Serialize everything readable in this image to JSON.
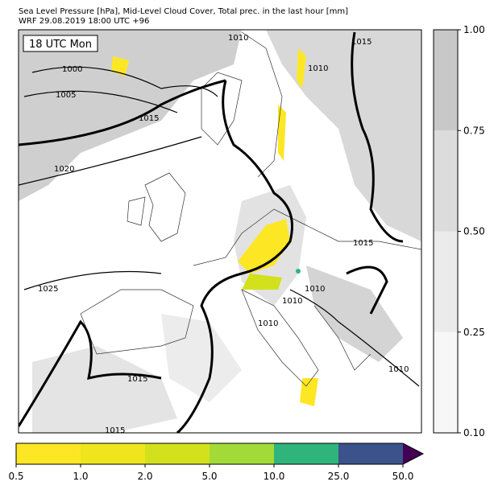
{
  "header": {
    "title_lines": [
      "Sea Level Pressure [hPa], Mid-Level Cloud Cover, Total prec. in the last hour [mm]",
      "WRF 29.08.2019 18:00 UTC +96"
    ]
  },
  "map": {
    "time_label": "18 UTC Mon",
    "isobar_labels": [
      "1010",
      "1000",
      "1005",
      "1015",
      "1020",
      "1010",
      "1015",
      "1015",
      "1025",
      "1010",
      "1010",
      "1010",
      "1015",
      "1010",
      "1015"
    ]
  },
  "cloud_colorbar": {
    "levels": [
      {
        "value": 0.1,
        "label": "0.10"
      },
      {
        "value": 0.25,
        "label": "0.25"
      },
      {
        "value": 0.5,
        "label": "0.50"
      },
      {
        "value": 0.75,
        "label": "0.75"
      },
      {
        "value": 1,
        "label": "1.00"
      }
    ],
    "colors": [
      "#f7f7f7",
      "#ebebeb",
      "#dcdcdc",
      "#c8c8c8"
    ]
  },
  "precip_colorbar": {
    "levels": [
      {
        "value": 0.5,
        "label": "0.5"
      },
      {
        "value": 1,
        "label": "1.0"
      },
      {
        "value": 2,
        "label": "2.0"
      },
      {
        "value": 5,
        "label": "5.0"
      },
      {
        "value": 10,
        "label": "10.0"
      },
      {
        "value": 25,
        "label": "25.0"
      },
      {
        "value": 50,
        "label": "50.0"
      }
    ],
    "colors": [
      "#fde725",
      "#eee51c",
      "#d2e11b",
      "#a2da37",
      "#2fb47c",
      "#3b528b"
    ],
    "extend_color": "#440154"
  }
}
